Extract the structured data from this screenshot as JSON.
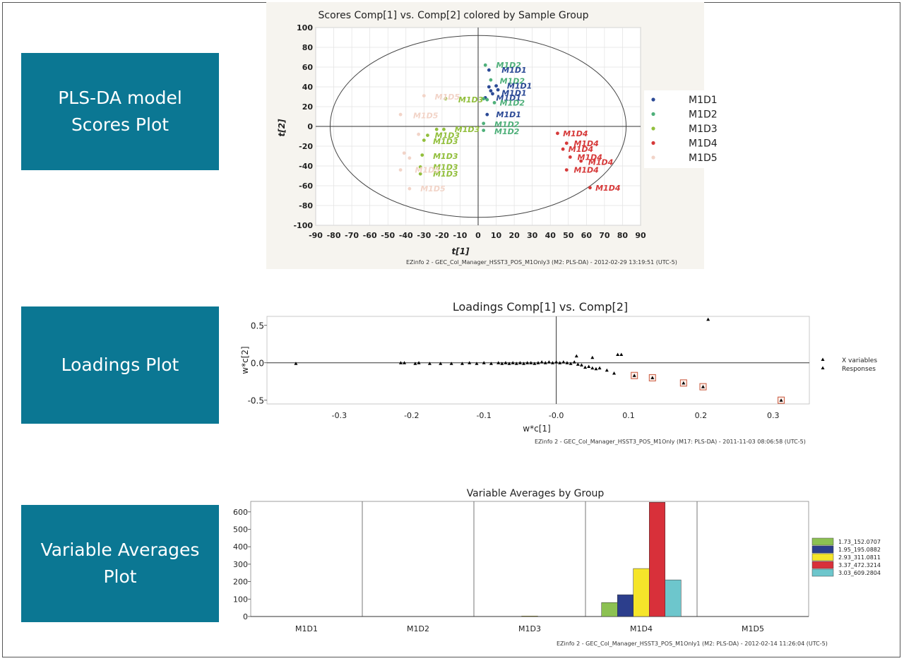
{
  "panels": [
    {
      "lines": [
        "PLS-DA model",
        "Scores Plot"
      ]
    },
    {
      "lines": [
        "Loadings Plot"
      ]
    },
    {
      "lines": [
        "Variable Averages",
        "Plot"
      ]
    }
  ],
  "chart_data": [
    {
      "type": "scatter",
      "title": "Scores Comp[1] vs. Comp[2] colored by Sample Group",
      "xlabel": "t[1]",
      "ylabel": "t[2]",
      "xlim": [
        -90,
        90
      ],
      "ylim": [
        -100,
        100
      ],
      "xticks": [
        -90,
        -80,
        -70,
        -60,
        -50,
        -40,
        -30,
        -20,
        -10,
        0,
        10,
        20,
        30,
        40,
        50,
        60,
        70,
        80,
        90
      ],
      "yticks": [
        -100,
        -80,
        -60,
        -40,
        -20,
        0,
        20,
        40,
        60,
        80,
        100
      ],
      "grid": true,
      "ellipse": {
        "rx": 82,
        "ry": 92
      },
      "legend_position": "right",
      "footer": "EZinfo 2 - GEC_Col_Manager_HSST3_POS_M1Only3 (M2: PLS-DA) - 2012-02-29 13:19:51 (UTC-5)",
      "series": [
        {
          "name": "M1D1",
          "color": "#2c4a96",
          "points": [
            [
              6,
              57
            ],
            [
              6,
              40
            ],
            [
              7,
              36
            ],
            [
              8,
              33
            ],
            [
              10,
              41
            ],
            [
              4,
              29
            ],
            [
              11,
              37
            ],
            [
              5,
              12
            ]
          ]
        },
        {
          "name": "M1D2",
          "color": "#4fb07a",
          "points": [
            [
              4,
              62
            ],
            [
              7,
              47
            ],
            [
              5,
              27
            ],
            [
              3,
              28
            ],
            [
              9,
              24
            ],
            [
              3,
              3
            ],
            [
              3,
              -4
            ]
          ]
        },
        {
          "name": "M1D3",
          "color": "#92bf3c",
          "points": [
            [
              -18,
              28
            ],
            [
              -19,
              -3
            ],
            [
              -23,
              -3
            ],
            [
              -28,
              -9
            ],
            [
              -30,
              -14
            ],
            [
              -31,
              -29
            ],
            [
              -32,
              -41
            ],
            [
              -32,
              -48
            ]
          ]
        },
        {
          "name": "M1D4",
          "color": "#d63a3a",
          "points": [
            [
              44,
              -7
            ],
            [
              49,
              -17
            ],
            [
              47,
              -23
            ],
            [
              51,
              -31
            ],
            [
              57,
              -35
            ],
            [
              49,
              -44
            ],
            [
              62,
              -62
            ]
          ]
        },
        {
          "name": "M1D5",
          "color": "#f2d4c8",
          "points": [
            [
              -30,
              31
            ],
            [
              -43,
              12
            ],
            [
              -41,
              -27
            ],
            [
              -38,
              -32
            ],
            [
              -43,
              -44
            ],
            [
              -38,
              -63
            ],
            [
              -33,
              -8
            ]
          ]
        }
      ],
      "point_labels": [
        {
          "text": "M1D2",
          "series": 1,
          "x": 10,
          "y": 62
        },
        {
          "text": "M1D1",
          "series": 0,
          "x": 13,
          "y": 57
        },
        {
          "text": "M1D2",
          "series": 1,
          "x": 12,
          "y": 46
        },
        {
          "text": "M1D1",
          "series": 0,
          "x": 16,
          "y": 41
        },
        {
          "text": "M1D1",
          "series": 0,
          "x": 13,
          "y": 34
        },
        {
          "text": "M1D1",
          "series": 0,
          "x": 10,
          "y": 29
        },
        {
          "text": "M1D2",
          "series": 1,
          "x": 12,
          "y": 24
        },
        {
          "text": "M1D3",
          "series": 2,
          "x": -11,
          "y": 27
        },
        {
          "text": "M1D5",
          "series": 4,
          "x": -24,
          "y": 30
        },
        {
          "text": "M1D1",
          "series": 0,
          "x": 10,
          "y": 12
        },
        {
          "text": "M1D5",
          "series": 4,
          "x": -36,
          "y": 11
        },
        {
          "text": "M1D2",
          "series": 1,
          "x": 9,
          "y": 2
        },
        {
          "text": "M1D2",
          "series": 1,
          "x": 9,
          "y": -5
        },
        {
          "text": "M1D3",
          "series": 2,
          "x": -13,
          "y": -3
        },
        {
          "text": "M1D3",
          "series": 2,
          "x": -24,
          "y": -9
        },
        {
          "text": "M1D3",
          "series": 2,
          "x": -25,
          "y": -15
        },
        {
          "text": "M1D3",
          "series": 2,
          "x": -25,
          "y": -30
        },
        {
          "text": "M1D3",
          "series": 2,
          "x": -25,
          "y": -41
        },
        {
          "text": "M1D3",
          "series": 2,
          "x": -25,
          "y": -48
        },
        {
          "text": "M1D5",
          "series": 4,
          "x": -35,
          "y": -44
        },
        {
          "text": "M1D5",
          "series": 4,
          "x": -32,
          "y": -63
        },
        {
          "text": "M1D4",
          "series": 3,
          "x": 47,
          "y": -7
        },
        {
          "text": "M1D4",
          "series": 3,
          "x": 53,
          "y": -17
        },
        {
          "text": "M1D4",
          "series": 3,
          "x": 50,
          "y": -23
        },
        {
          "text": "M1D4",
          "series": 3,
          "x": 55,
          "y": -31
        },
        {
          "text": "M1D4",
          "series": 3,
          "x": 61,
          "y": -36
        },
        {
          "text": "M1D4",
          "series": 3,
          "x": 53,
          "y": -44
        },
        {
          "text": "M1D4",
          "series": 3,
          "x": 65,
          "y": -62
        }
      ]
    },
    {
      "type": "scatter",
      "title": "Loadings Comp[1] vs. Comp[2]",
      "xlabel": "w*c[1]",
      "ylabel": "w*c[2]",
      "xlim": [
        -0.4,
        0.35
      ],
      "ylim": [
        -0.55,
        0.62
      ],
      "xticks": [
        -0.3,
        -0.2,
        -0.1,
        -0.0,
        0.1,
        0.2,
        0.3
      ],
      "xtick_labels": [
        "-0.3",
        "-0.2",
        "-0.1",
        "-0.0",
        "0.1",
        "0.2",
        "0.3"
      ],
      "yticks": [
        0.5,
        0.0,
        -0.5
      ],
      "ytick_labels": [
        "0.5",
        "0.0",
        "-0.5"
      ],
      "grid": false,
      "legend_position": "right",
      "footer": "EZinfo 2 - GEC_Col_Manager_HSST3_POS_M1Only (M17: PLS-DA) - 2011-11-03 08:06:58 (UTC-5)",
      "series": [
        {
          "name": "X variables",
          "color": "#000000",
          "points": [
            [
              -0.36,
              -0.01
            ],
            [
              -0.215,
              0.0
            ],
            [
              -0.21,
              0.0
            ],
            [
              -0.195,
              -0.01
            ],
            [
              -0.19,
              0.0
            ],
            [
              -0.175,
              -0.01
            ],
            [
              -0.16,
              -0.01
            ],
            [
              -0.145,
              -0.01
            ],
            [
              -0.13,
              -0.01
            ],
            [
              -0.12,
              0.0
            ],
            [
              -0.11,
              -0.01
            ],
            [
              -0.1,
              0.0
            ],
            [
              -0.09,
              -0.01
            ],
            [
              -0.08,
              0.0
            ],
            [
              -0.075,
              -0.01
            ],
            [
              -0.07,
              0.0
            ],
            [
              -0.065,
              -0.01
            ],
            [
              -0.06,
              0.0
            ],
            [
              -0.055,
              -0.01
            ],
            [
              -0.05,
              0.0
            ],
            [
              -0.045,
              -0.01
            ],
            [
              -0.04,
              0.0
            ],
            [
              -0.035,
              0.0
            ],
            [
              -0.03,
              -0.01
            ],
            [
              -0.025,
              0.0
            ],
            [
              -0.02,
              0.01
            ],
            [
              -0.015,
              0.0
            ],
            [
              -0.01,
              0.01
            ],
            [
              -0.005,
              0.0
            ],
            [
              0.0,
              0.01
            ],
            [
              0.005,
              0.0
            ],
            [
              0.01,
              0.01
            ],
            [
              0.015,
              0.0
            ],
            [
              0.02,
              -0.01
            ],
            [
              0.025,
              0.01
            ],
            [
              0.03,
              -0.02
            ],
            [
              0.035,
              -0.03
            ],
            [
              0.04,
              -0.06
            ],
            [
              0.045,
              -0.05
            ],
            [
              0.05,
              -0.07
            ],
            [
              0.055,
              -0.08
            ],
            [
              0.06,
              -0.07
            ],
            [
              0.07,
              -0.1
            ],
            [
              0.08,
              -0.14
            ],
            [
              0.028,
              0.09
            ],
            [
              0.05,
              0.07
            ],
            [
              0.085,
              0.11
            ],
            [
              0.09,
              0.11
            ],
            [
              0.21,
              0.58
            ]
          ]
        },
        {
          "name": "Responses",
          "color": "#000000",
          "points": [
            [
              0.108,
              -0.17
            ],
            [
              0.133,
              -0.2
            ],
            [
              0.176,
              -0.27
            ],
            [
              0.203,
              -0.32
            ],
            [
              0.311,
              -0.5
            ]
          ]
        }
      ]
    },
    {
      "type": "bar",
      "title": "Variable Averages by Group",
      "categories": [
        "M1D1",
        "M1D2",
        "M1D3",
        "M1D4",
        "M1D5"
      ],
      "ylim": [
        0,
        660
      ],
      "yticks": [
        0,
        100,
        200,
        300,
        400,
        500,
        600
      ],
      "legend_position": "right",
      "footer": "EZinfo 2 - GEC_Col_Manager_HSST3_POS_M1Only1 (M2: PLS-DA) - 2012-02-14 11:26:04 (UTC-5)",
      "series": [
        {
          "name": "1.73_152.0707",
          "color": "#8cc152",
          "values": [
            0,
            0,
            0,
            80,
            0
          ]
        },
        {
          "name": "1.95_195.0882",
          "color": "#2c3e8c",
          "values": [
            0,
            0,
            0,
            125,
            0
          ]
        },
        {
          "name": "2.93_311.0811",
          "color": "#f5e52a",
          "values": [
            0,
            0,
            3,
            275,
            0
          ]
        },
        {
          "name": "3.37_472.3214",
          "color": "#d8303a",
          "values": [
            0,
            0,
            0,
            655,
            0
          ]
        },
        {
          "name": "3.03_609.2804",
          "color": "#6dc6cc",
          "values": [
            0,
            0,
            0,
            210,
            0
          ]
        }
      ]
    }
  ]
}
